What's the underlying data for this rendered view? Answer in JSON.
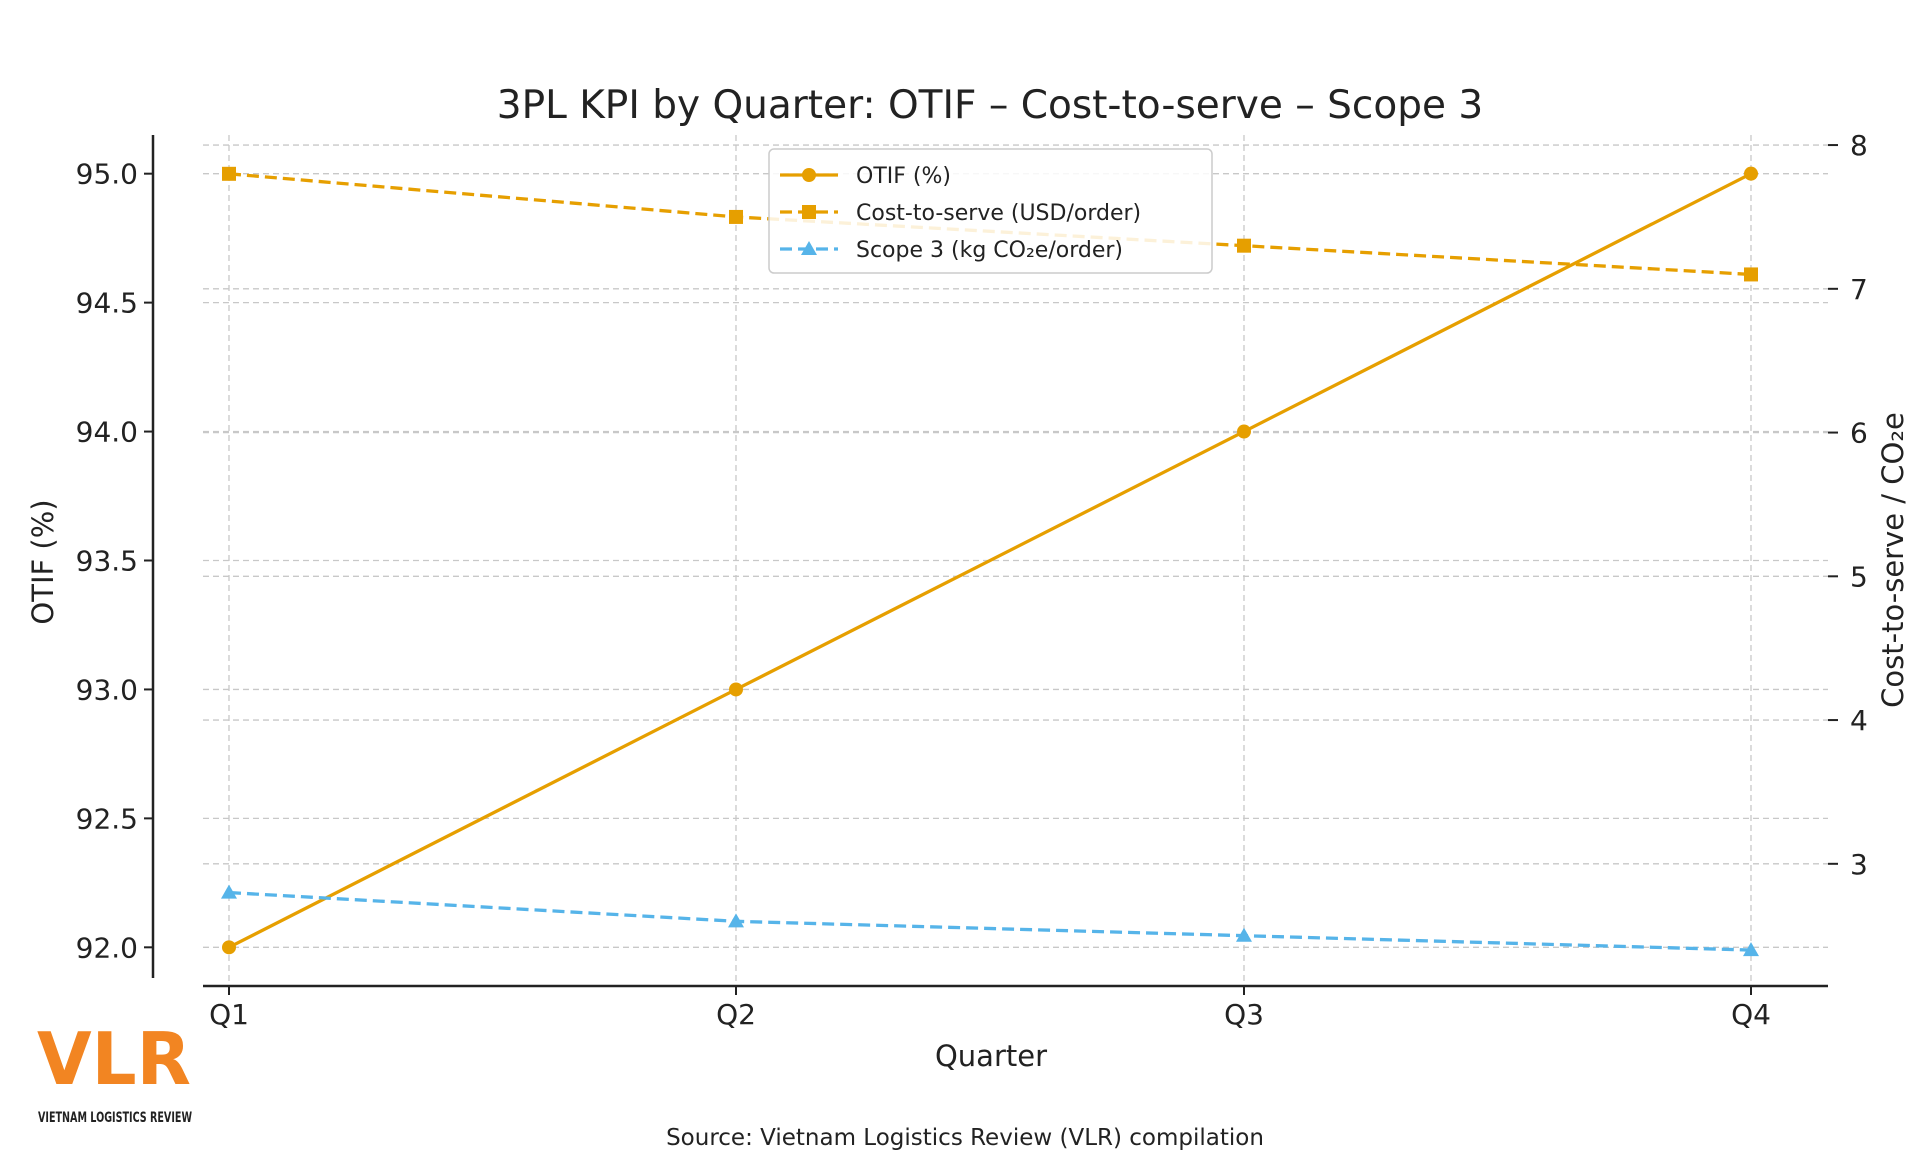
{
  "chart_data": {
    "type": "line",
    "title": "3PL KPI by Quarter: OTIF – Cost-to-serve – Scope 3",
    "xlabel": "Quarter",
    "ylabel": "OTIF (%)",
    "y2label": "Cost-to-serve / CO₂e",
    "categories": [
      "Q1",
      "Q2",
      "Q3",
      "Q4"
    ],
    "ylim": [
      91.85,
      95.15
    ],
    "y2lim": [
      2.15,
      8.07
    ],
    "yticks": [
      "92.0",
      "92.5",
      "93.0",
      "93.5",
      "94.0",
      "94.5",
      "95.0"
    ],
    "y2ticks": [
      "3",
      "4",
      "5",
      "6",
      "7",
      "8"
    ],
    "grid": true,
    "legend_position": "top-center",
    "series": [
      {
        "name": "OTIF (%)",
        "axis": "left",
        "values": [
          92.0,
          93.0,
          94.0,
          95.0
        ],
        "color": "#E69F00",
        "style": "solid",
        "marker": "circle"
      },
      {
        "name": "Cost-to-serve (USD/order)",
        "axis": "right",
        "values": [
          7.8,
          7.5,
          7.3,
          7.1
        ],
        "color": "#E69F00",
        "style": "dashed",
        "marker": "square"
      },
      {
        "name": "Scope 3 (kg CO₂e/order)",
        "axis": "right",
        "values": [
          2.8,
          2.6,
          2.5,
          2.4
        ],
        "color": "#56B4E9",
        "style": "dashed",
        "marker": "triangle"
      }
    ]
  },
  "footer": {
    "source": "Source: Vietnam Logistics Review (VLR) compilation",
    "logo_text": "VLR",
    "logo_subtext": "VIETNAM LOGISTICS REVIEW",
    "logo_color": "#F28522"
  }
}
